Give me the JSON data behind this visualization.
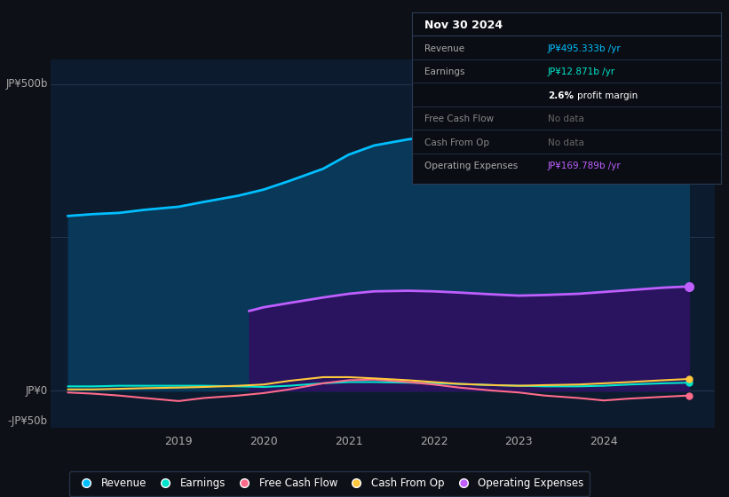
{
  "background_color": "#0d1117",
  "plot_bg_color": "#0d1b2e",
  "ylim": [
    -60,
    540
  ],
  "xlim": [
    2017.5,
    2025.3
  ],
  "x_ticks": [
    2019,
    2020,
    2021,
    2022,
    2023,
    2024
  ],
  "ylabel_top": "JP¥500b",
  "ylabel_zero": "JP¥0",
  "ylabel_neg": "-JP¥50b",
  "grid_lines": [
    500,
    250,
    0
  ],
  "legend_items": [
    {
      "label": "Revenue",
      "color": "#00bfff"
    },
    {
      "label": "Earnings",
      "color": "#00e5cc"
    },
    {
      "label": "Free Cash Flow",
      "color": "#ff6b8a"
    },
    {
      "label": "Cash From Op",
      "color": "#ffc83d"
    },
    {
      "label": "Operating Expenses",
      "color": "#bf5fff"
    }
  ],
  "info_box": {
    "title": "Nov 30 2024",
    "rows": [
      {
        "label": "Revenue",
        "value": "JP¥495.333b /yr",
        "value_color": "#00bfff",
        "label_color": "#aaaaaa"
      },
      {
        "label": "Earnings",
        "value": "JP¥12.871b /yr",
        "value_color": "#00e5cc",
        "label_color": "#aaaaaa"
      },
      {
        "label": "",
        "value": "2.6% profit margin",
        "value_color": "#ffffff",
        "label_color": "#aaaaaa",
        "bold_prefix": "2.6%"
      },
      {
        "label": "Free Cash Flow",
        "value": "No data",
        "value_color": "#666666",
        "label_color": "#888888"
      },
      {
        "label": "Cash From Op",
        "value": "No data",
        "value_color": "#666666",
        "label_color": "#888888"
      },
      {
        "label": "Operating Expenses",
        "value": "JP¥169.789b /yr",
        "value_color": "#bf5fff",
        "label_color": "#aaaaaa"
      }
    ]
  },
  "revenue": {
    "x": [
      2017.7,
      2018.0,
      2018.3,
      2018.6,
      2019.0,
      2019.3,
      2019.7,
      2020.0,
      2020.3,
      2020.7,
      2021.0,
      2021.3,
      2021.7,
      2022.0,
      2022.3,
      2022.7,
      2023.0,
      2023.3,
      2023.7,
      2024.0,
      2024.3,
      2024.7,
      2025.0
    ],
    "y": [
      285,
      288,
      290,
      295,
      300,
      308,
      318,
      328,
      342,
      362,
      385,
      400,
      410,
      415,
      408,
      402,
      400,
      405,
      415,
      430,
      450,
      475,
      495
    ],
    "color": "#00bfff",
    "fill_color": "#093a5c",
    "fill_alpha": 0.95
  },
  "operating_expenses": {
    "x": [
      2019.83,
      2020.0,
      2020.3,
      2020.7,
      2021.0,
      2021.3,
      2021.7,
      2022.0,
      2022.3,
      2022.7,
      2023.0,
      2023.3,
      2023.7,
      2024.0,
      2024.3,
      2024.7,
      2025.0
    ],
    "y": [
      130,
      136,
      143,
      152,
      158,
      162,
      163,
      162,
      160,
      157,
      155,
      156,
      158,
      161,
      164,
      168,
      170
    ],
    "color": "#bf5fff",
    "fill_color": "#2e1060",
    "fill_alpha": 0.9
  },
  "earnings": {
    "x": [
      2017.7,
      2018.0,
      2018.3,
      2018.6,
      2019.0,
      2019.3,
      2019.7,
      2020.0,
      2020.3,
      2020.7,
      2021.0,
      2021.3,
      2021.7,
      2022.0,
      2022.3,
      2022.7,
      2023.0,
      2023.3,
      2023.7,
      2024.0,
      2024.3,
      2024.7,
      2025.0
    ],
    "y": [
      7,
      7,
      8,
      8,
      8,
      8,
      7,
      6,
      8,
      12,
      14,
      14,
      13,
      12,
      11,
      9,
      8,
      7,
      7,
      8,
      10,
      12,
      13
    ],
    "color": "#00e5cc"
  },
  "free_cash_flow": {
    "x": [
      2017.7,
      2018.0,
      2018.3,
      2018.6,
      2019.0,
      2019.3,
      2019.7,
      2020.0,
      2020.3,
      2020.7,
      2021.0,
      2021.3,
      2021.7,
      2022.0,
      2022.3,
      2022.7,
      2023.0,
      2023.3,
      2023.7,
      2024.0,
      2024.3,
      2024.7,
      2025.0
    ],
    "y": [
      -3,
      -5,
      -8,
      -12,
      -17,
      -12,
      -8,
      -4,
      2,
      12,
      17,
      18,
      14,
      10,
      5,
      0,
      -3,
      -8,
      -12,
      -16,
      -13,
      -10,
      -8
    ],
    "color": "#ff6b8a"
  },
  "cash_from_op": {
    "x": [
      2017.7,
      2018.0,
      2018.3,
      2018.6,
      2019.0,
      2019.3,
      2019.7,
      2020.0,
      2020.3,
      2020.7,
      2021.0,
      2021.3,
      2021.7,
      2022.0,
      2022.3,
      2022.7,
      2023.0,
      2023.3,
      2023.7,
      2024.0,
      2024.3,
      2024.7,
      2025.0
    ],
    "y": [
      2,
      2,
      3,
      4,
      5,
      6,
      8,
      10,
      16,
      22,
      22,
      20,
      17,
      14,
      11,
      9,
      8,
      9,
      10,
      12,
      14,
      17,
      19
    ],
    "color": "#ffc83d"
  }
}
